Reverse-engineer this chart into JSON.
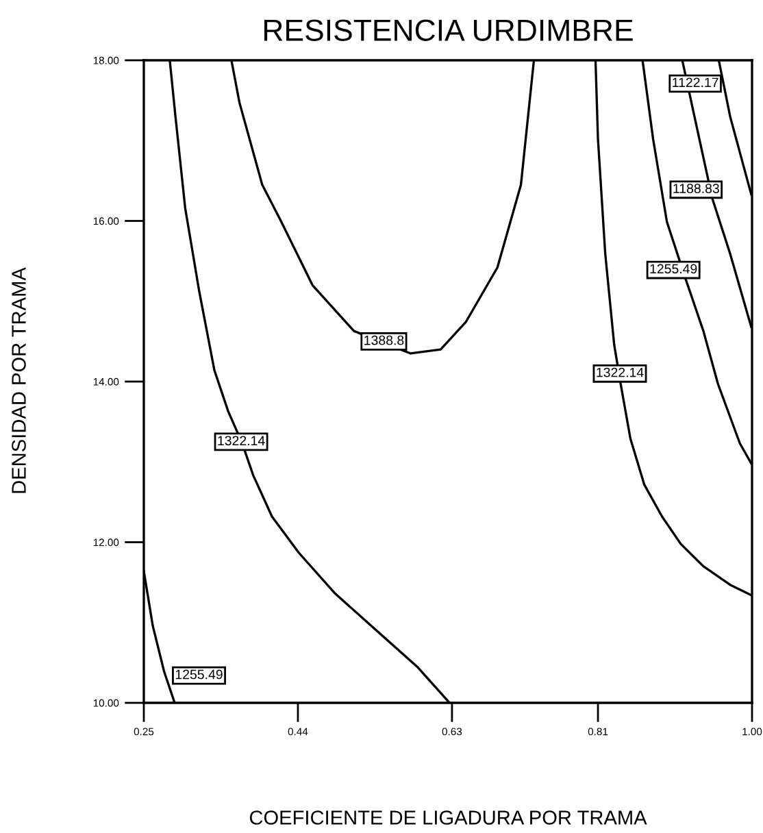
{
  "chart_data": {
    "type": "line",
    "title": "RESISTENCIA URDIMBRE",
    "xlabel": "COEFICIENTE DE LIGADURA POR TRAMA",
    "ylabel": "DENSIDAD POR TRAMA",
    "xlim": [
      0.25,
      1.0
    ],
    "ylim": [
      10.0,
      18.0
    ],
    "xticks": [
      {
        "value": 0.25,
        "label": "0.25"
      },
      {
        "value": 0.44,
        "label": "0.44"
      },
      {
        "value": 0.63,
        "label": "0.63"
      },
      {
        "value": 0.81,
        "label": "0.81"
      },
      {
        "value": 1.0,
        "label": "1.00"
      }
    ],
    "yticks": [
      {
        "value": 10,
        "label": "10.00"
      },
      {
        "value": 12,
        "label": "12.00"
      },
      {
        "value": 14,
        "label": "14.00"
      },
      {
        "value": 16,
        "label": "16.00"
      },
      {
        "value": 18,
        "label": "18.00"
      }
    ],
    "grid": false,
    "marker": "none",
    "line_style": "solid",
    "series": [
      {
        "color": "#000000",
        "x": [
          0.282,
          0.289,
          0.301,
          0.318,
          0.337,
          0.354,
          0.371,
          0.385,
          0.408,
          0.441,
          0.486,
          0.537,
          0.587,
          0.627
        ],
        "values": [
          18.0,
          17.3,
          16.16,
          15.14,
          14.14,
          13.63,
          13.24,
          12.83,
          12.32,
          11.87,
          11.36,
          10.9,
          10.45,
          10.0
        ]
      },
      {
        "color": "#000000",
        "x": [
          0.358,
          0.368,
          0.396,
          0.419,
          0.458,
          0.509,
          0.546,
          0.579,
          0.616,
          0.647,
          0.686,
          0.715,
          0.731
        ],
        "values": [
          18.0,
          17.47,
          16.45,
          16.0,
          15.2,
          14.63,
          14.48,
          14.35,
          14.4,
          14.74,
          15.42,
          16.45,
          18.0
        ]
      },
      {
        "color": "#000000",
        "x": [
          0.807,
          0.81,
          0.819,
          0.83,
          0.838,
          0.85,
          0.867,
          0.889,
          0.912,
          0.94,
          0.973,
          0.999
        ],
        "values": [
          18.0,
          17.02,
          15.59,
          14.46,
          13.97,
          13.29,
          12.72,
          12.32,
          11.98,
          11.7,
          11.47,
          11.34
        ]
      },
      {
        "color": "#000000",
        "x": [
          0.865,
          0.878,
          0.895,
          0.917,
          0.94,
          0.958,
          0.985,
          0.999
        ],
        "values": [
          18.0,
          17.02,
          15.99,
          15.31,
          14.63,
          13.97,
          13.23,
          12.98
        ]
      },
      {
        "color": "#000000",
        "x": [
          0.914,
          0.929,
          0.951,
          0.973,
          0.999
        ],
        "values": [
          18.0,
          17.3,
          16.28,
          15.59,
          14.68
        ]
      },
      {
        "color": "#000000",
        "x": [
          0.959,
          0.973,
          0.999
        ],
        "values": [
          18.0,
          17.3,
          16.33
        ]
      },
      {
        "color": "#000000",
        "x": [
          0.25,
          0.261,
          0.275,
          0.288
        ],
        "values": [
          11.64,
          10.96,
          10.39,
          10.0
        ]
      }
    ],
    "annotations": [
      {
        "text": "1322.14",
        "x": 0.37,
        "y": 13.25
      },
      {
        "text": "1388.8",
        "x": 0.546,
        "y": 14.5
      },
      {
        "text": "1322.14",
        "x": 0.837,
        "y": 14.1
      },
      {
        "text": "1255.49",
        "x": 0.903,
        "y": 15.39
      },
      {
        "text": "1188.83",
        "x": 0.931,
        "y": 16.39
      },
      {
        "text": "1122.17",
        "x": 0.93,
        "y": 17.71
      },
      {
        "text": "1255.49",
        "x": 0.318,
        "y": 10.34
      }
    ]
  }
}
